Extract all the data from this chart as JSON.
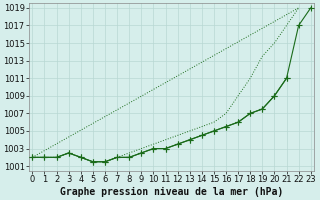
{
  "x": [
    0,
    1,
    2,
    3,
    4,
    5,
    6,
    7,
    8,
    9,
    10,
    11,
    12,
    13,
    14,
    15,
    16,
    17,
    18,
    19,
    20,
    21,
    22,
    23
  ],
  "line_top": [
    1002,
    1002,
    1002,
    1002.5,
    1002,
    1001.5,
    1001.5,
    1002,
    1002.5,
    1003,
    1003.5,
    1004,
    1004.5,
    1005,
    1005.5,
    1006,
    1007,
    1009,
    1011,
    1013.5,
    1015,
    1017,
    1019,
    null
  ],
  "line_mid": [
    1002,
    1002,
    1002,
    1002.5,
    1002,
    1001.5,
    1001.5,
    1002,
    1002,
    1002.5,
    1003,
    1003,
    1003.5,
    1004,
    1004.5,
    1005,
    1005.5,
    1006,
    1007,
    1007.5,
    1009,
    1011,
    1017,
    1019
  ],
  "line_bot": [
    1002,
    1002,
    1002,
    1002.5,
    1002,
    1001.5,
    1001.5,
    1002,
    1002,
    1002.5,
    1003,
    1003,
    1003.5,
    1004,
    1004.5,
    1005,
    1005.5,
    1006,
    1007,
    1007.5,
    1009,
    1011,
    null,
    null
  ],
  "ylim": [
    1000.5,
    1019.5
  ],
  "xlim": [
    -0.3,
    23.3
  ],
  "yticks": [
    1001,
    1003,
    1005,
    1007,
    1009,
    1011,
    1013,
    1015,
    1017,
    1019
  ],
  "xticks": [
    0,
    1,
    2,
    3,
    4,
    5,
    6,
    7,
    8,
    9,
    10,
    11,
    12,
    13,
    14,
    15,
    16,
    17,
    18,
    19,
    20,
    21,
    22,
    23
  ],
  "line_color": "#1a6b1a",
  "bg_color": "#d6eeeb",
  "grid_color": "#b8d8d4",
  "xlabel": "Graphe pression niveau de la mer (hPa)",
  "xlabel_fontsize": 7.0,
  "tick_fontsize": 6.0,
  "marker": "P",
  "markersize": 2.8,
  "linewidth": 0.8
}
